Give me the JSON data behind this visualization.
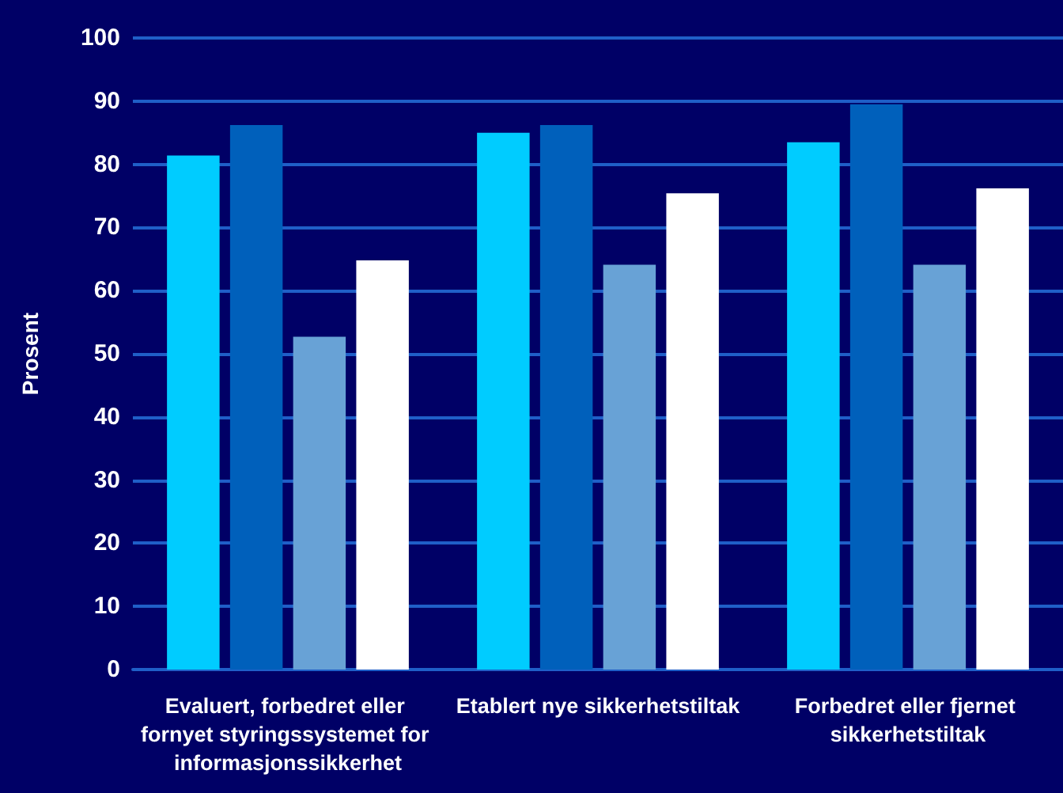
{
  "chart_data": {
    "type": "bar",
    "ylabel": "Prosent",
    "categories": [
      "Evaluert, forbedret eller fornyet styringssystemet for informasjonssikkerhet",
      "Etablert nye sikkerhetstiltak",
      "Forbedret eller fjernet sikkerhetstiltak"
    ],
    "series": [
      {
        "color": "#00ccff",
        "values": [
          81.4,
          85.0,
          83.5
        ]
      },
      {
        "color": "#0060bb",
        "values": [
          86.2,
          86.2,
          89.5
        ]
      },
      {
        "color": "#68a2d6",
        "values": [
          52.7,
          64.1,
          64.1
        ]
      },
      {
        "color": "#ffffff",
        "values": [
          64.8,
          75.4,
          76.2
        ]
      }
    ],
    "ylim": [
      0,
      100
    ],
    "yticks": [
      0,
      10,
      20,
      30,
      40,
      50,
      60,
      70,
      80,
      90,
      100
    ],
    "grid": "y"
  }
}
